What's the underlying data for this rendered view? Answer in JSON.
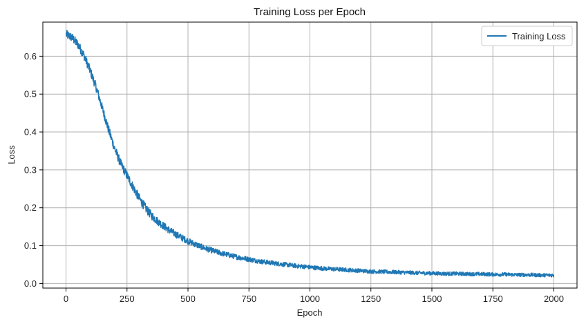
{
  "chart_data": {
    "type": "line",
    "title": "Training Loss per Epoch",
    "xlabel": "Epoch",
    "ylabel": "Loss",
    "xlim": [
      -95,
      2095
    ],
    "ylim": [
      -0.012,
      0.69
    ],
    "xticks": [
      0,
      250,
      500,
      750,
      1000,
      1250,
      1500,
      1750,
      2000
    ],
    "yticks": [
      0.0,
      0.1,
      0.2,
      0.3,
      0.4,
      0.5,
      0.6
    ],
    "ytick_labels": [
      "0.0",
      "0.1",
      "0.2",
      "0.3",
      "0.4",
      "0.5",
      "0.6"
    ],
    "grid": true,
    "legend_position": "top-right",
    "series": [
      {
        "name": "Training Loss",
        "color": "#1f77b4",
        "x": [
          0,
          25,
          50,
          75,
          100,
          125,
          150,
          175,
          200,
          225,
          250,
          275,
          300,
          325,
          350,
          375,
          400,
          425,
          450,
          475,
          500,
          525,
          550,
          575,
          600,
          625,
          650,
          675,
          700,
          725,
          750,
          775,
          800,
          825,
          850,
          875,
          900,
          925,
          950,
          975,
          1000,
          1050,
          1100,
          1150,
          1200,
          1250,
          1300,
          1350,
          1400,
          1450,
          1500,
          1550,
          1600,
          1650,
          1700,
          1750,
          1800,
          1850,
          1900,
          1950,
          2000
        ],
        "values": [
          0.658,
          0.649,
          0.63,
          0.6,
          0.56,
          0.515,
          0.46,
          0.405,
          0.355,
          0.315,
          0.285,
          0.255,
          0.225,
          0.2,
          0.18,
          0.165,
          0.152,
          0.14,
          0.13,
          0.121,
          0.112,
          0.105,
          0.098,
          0.092,
          0.087,
          0.082,
          0.078,
          0.074,
          0.07,
          0.067,
          0.064,
          0.061,
          0.058,
          0.056,
          0.054,
          0.052,
          0.05,
          0.048,
          0.046,
          0.045,
          0.043,
          0.04,
          0.038,
          0.036,
          0.034,
          0.032,
          0.031,
          0.03,
          0.029,
          0.028,
          0.027,
          0.026,
          0.026,
          0.025,
          0.025,
          0.024,
          0.024,
          0.023,
          0.023,
          0.022,
          0.022
        ]
      }
    ]
  }
}
